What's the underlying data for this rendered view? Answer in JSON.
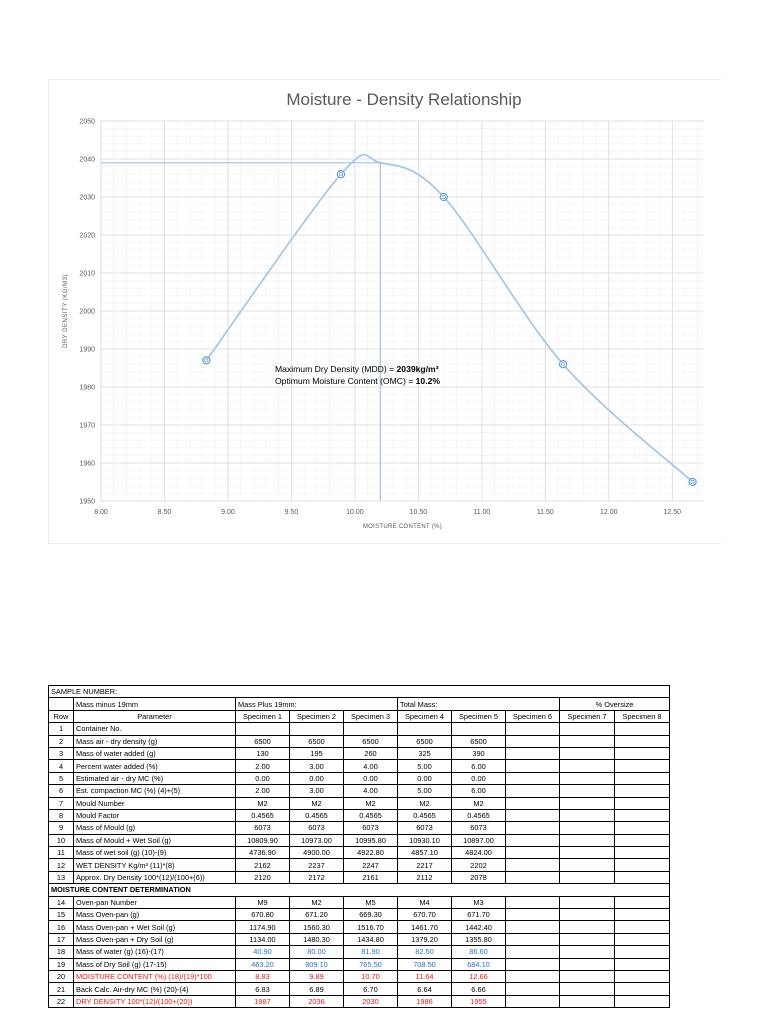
{
  "chart_data": {
    "type": "scatter",
    "title": "Moisture - Density Relationship",
    "xlabel": "MOISTURE CONTENT (%)",
    "ylabel": "DRY DENSITY (KG/M3)",
    "xlim": [
      8.0,
      12.75
    ],
    "ylim": [
      1950,
      2050
    ],
    "x_ticks": [
      "8.00",
      "8.50",
      "9.00",
      "9.50",
      "10.00",
      "10.50",
      "11.00",
      "11.50",
      "12.00",
      "12.50"
    ],
    "y_ticks": [
      "1950",
      "1960",
      "1970",
      "1980",
      "1990",
      "2000",
      "2010",
      "2020",
      "2030",
      "2040",
      "2050"
    ],
    "grid": true,
    "points": [
      {
        "x": 8.83,
        "y": 1987
      },
      {
        "x": 9.89,
        "y": 2036
      },
      {
        "x": 10.7,
        "y": 2030
      },
      {
        "x": 11.64,
        "y": 1986
      },
      {
        "x": 12.66,
        "y": 1955
      }
    ],
    "peak": {
      "x": 10.2,
      "y": 2039
    },
    "annotation": {
      "line1_prefix": "Maximum Dry Density (MDD) = ",
      "line1_value": "2039kg/m³",
      "line2_prefix": "Optimum Moisture Content (OMC)  = ",
      "line2_value": "10.2%"
    },
    "colors": {
      "curve": "#a9c8e6",
      "marker": "#5b9bd5",
      "reference_line": "#9dc3e6"
    }
  },
  "table": {
    "sample_number_label": "SAMPLE NUMBER:",
    "mass_minus_label": "Mass minus 19mm",
    "mass_plus_label": "Mass Plus 19mm:",
    "total_mass_label": "Total Mass:",
    "oversize_label": "% Oversize",
    "row_header": "Row",
    "parameter_header": "Parameter",
    "specimens": [
      "Specimen 1",
      "Specimen 2",
      "Specimen 3",
      "Specimen 4",
      "Specimen 5",
      "Specimen 6",
      "Specimen 7",
      "Specimen 8"
    ],
    "moisture_section_label": "MOISTURE CONTENT DETERMINATION",
    "rows_a": [
      {
        "row": "1",
        "param": "Container No.",
        "values": [
          "",
          "",
          "",
          "",
          "",
          "",
          "",
          ""
        ]
      },
      {
        "row": "2",
        "param": "Mass air - dry density (g)",
        "values": [
          "6500",
          "6500",
          "6500",
          "6500",
          "6500",
          "",
          "",
          ""
        ]
      },
      {
        "row": "3",
        "param": "Mass of water added (g)",
        "values": [
          "130",
          "195",
          "260",
          "325",
          "390",
          "",
          "",
          ""
        ]
      },
      {
        "row": "4",
        "param": "Percent water added (%)",
        "values": [
          "2.00",
          "3.00",
          "4.00",
          "5.00",
          "6.00",
          "",
          "",
          ""
        ]
      },
      {
        "row": "5",
        "param": "Estimated air - dry MC (%)",
        "values": [
          "0.00",
          "0.00",
          "0.00",
          "0.00",
          "0.00",
          "",
          "",
          ""
        ]
      },
      {
        "row": "6",
        "param": "Est. compaction MC (%) (4)+(5)",
        "values": [
          "2.00",
          "3.00",
          "4.00",
          "5.00",
          "6.00",
          "",
          "",
          ""
        ]
      },
      {
        "row": "7",
        "param": "Mould Number",
        "values": [
          "M2",
          "M2",
          "M2",
          "M2",
          "M2",
          "",
          "",
          ""
        ]
      },
      {
        "row": "8",
        "param": "Mould Factor",
        "values": [
          "0.4565",
          "0.4565",
          "0.4565",
          "0.4565",
          "0.4565",
          "",
          "",
          ""
        ]
      },
      {
        "row": "9",
        "param": "Mass of Mould (g)",
        "values": [
          "6073",
          "6073",
          "6073",
          "6073",
          "6073",
          "",
          "",
          ""
        ]
      },
      {
        "row": "10",
        "param": "Mass of Mould + Wet Soil (g)",
        "values": [
          "10809.90",
          "10973.00",
          "10995.80",
          "10930.10",
          "10897.00",
          "",
          "",
          ""
        ]
      },
      {
        "row": "11",
        "param": "Mass of wet soil (g) (10)-(9)",
        "values": [
          "4736.90",
          "4900.00",
          "4922.80",
          "4857.10",
          "4824.00",
          "",
          "",
          ""
        ]
      },
      {
        "row": "12",
        "param": "WET DENSITY Kg/m³ (11)*(8)",
        "values": [
          "2162",
          "2237",
          "2247",
          "2217",
          "2202",
          "",
          "",
          ""
        ]
      },
      {
        "row": "13",
        "param": "Approx. Dry Density 100*(12)/(100+(6))",
        "values": [
          "2120",
          "2172",
          "2161",
          "2112",
          "2078",
          "",
          "",
          ""
        ]
      }
    ],
    "rows_b": [
      {
        "row": "14",
        "param": "Oven-pan Number",
        "values": [
          "M9",
          "M2",
          "M5",
          "M4",
          "M3",
          "",
          "",
          ""
        ],
        "style": ""
      },
      {
        "row": "15",
        "param": "Mass Oven-pan (g)",
        "values": [
          "670.80",
          "671.20",
          "669.30",
          "670.70",
          "671.70",
          "",
          "",
          ""
        ],
        "style": ""
      },
      {
        "row": "16",
        "param": "Mass Oven-pan + Wet Soil (g)",
        "values": [
          "1174.90",
          "1560.30",
          "1516.70",
          "1461.70",
          "1442.40",
          "",
          "",
          ""
        ],
        "style": ""
      },
      {
        "row": "17",
        "param": "Mass Oven-pan + Dry Soil (g)",
        "values": [
          "1134.00",
          "1480.30",
          "1434.80",
          "1379.20",
          "1355.80",
          "",
          "",
          ""
        ],
        "style": ""
      },
      {
        "row": "18",
        "param": "Mass of water (g) (16)-(17)",
        "values": [
          "40.90",
          "80.00",
          "81.90",
          "82.50",
          "86.60",
          "",
          "",
          ""
        ],
        "style": "blue"
      },
      {
        "row": "19",
        "param": "Mass of Dry Soil (g) (17-15)",
        "values": [
          "463.20",
          "809.10",
          "765.50",
          "708.50",
          "684.10",
          "",
          "",
          ""
        ],
        "style": "blue"
      },
      {
        "row": "20",
        "param": "MOISTURE CONTENT (%) (18)/(19)*100",
        "values": [
          "8.83",
          "9.89",
          "10.70",
          "11.64",
          "12.66",
          "",
          "",
          ""
        ],
        "style": "red"
      },
      {
        "row": "21",
        "param": "Back Calc. Air-dry MC (%) (20)-(4)",
        "values": [
          "6.83",
          "6.89",
          "6.70",
          "6.64",
          "6.66",
          "",
          "",
          ""
        ],
        "style": ""
      },
      {
        "row": "22",
        "param": "DRY DENSITY 100*(12)/(100+(20))",
        "values": [
          "1987",
          "2036",
          "2030",
          "1986",
          "1955",
          "",
          "",
          ""
        ],
        "style": "red"
      }
    ]
  }
}
